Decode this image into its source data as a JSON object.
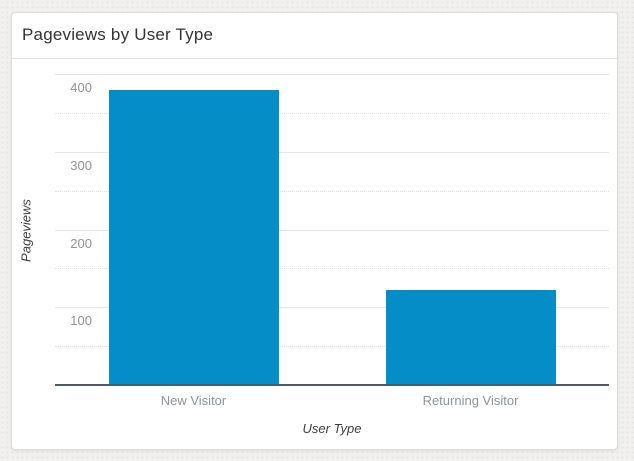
{
  "card": {
    "title": "Pageviews by User Type"
  },
  "chart_data": {
    "type": "bar",
    "title": "Pageviews by User Type",
    "categories": [
      "New Visitor",
      "Returning Visitor"
    ],
    "values": [
      380,
      122
    ],
    "xlabel": "User Type",
    "ylabel": "Pageviews",
    "ylim": [
      0,
      400
    ],
    "yticks": [
      100,
      200,
      300,
      400
    ],
    "minor_gridlines": [
      50,
      150,
      250,
      350
    ],
    "grid": "on",
    "legend": "none",
    "bar_color": "#058dc7"
  },
  "colors": {
    "bar": "#058dc7",
    "axis_line": "#4e5b68",
    "major_grid": "#e6e6e6",
    "minor_grid": "#e0e0e0",
    "tick_label": "#919191",
    "category_label": "#8d9399",
    "axis_title": "#3d3d3d",
    "card_title": "#333333",
    "card_border": "#dcdcdc",
    "card_bg": "#ffffff",
    "page_bg": "#f1f0ee",
    "divider": "#e2e2e2"
  }
}
